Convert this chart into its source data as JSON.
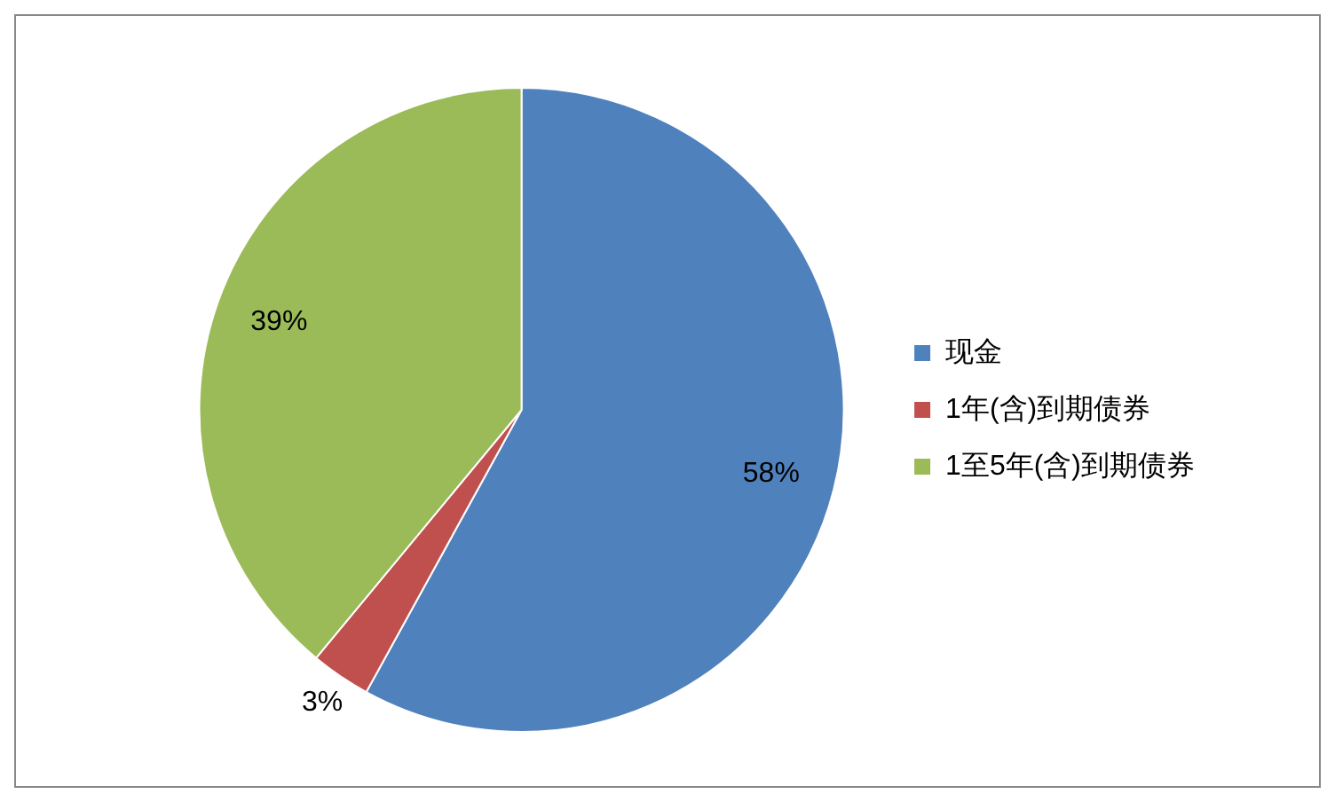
{
  "chart_data": {
    "type": "pie",
    "categories": [
      "现金",
      "1年(含)到期债券",
      "1至5年(含)到期债券"
    ],
    "values": [
      58,
      3,
      39
    ],
    "colors": [
      "#4f81bd",
      "#c0504d",
      "#9bbb59"
    ],
    "value_labels": [
      "58%",
      "3%",
      "39%"
    ],
    "legend": "right"
  }
}
